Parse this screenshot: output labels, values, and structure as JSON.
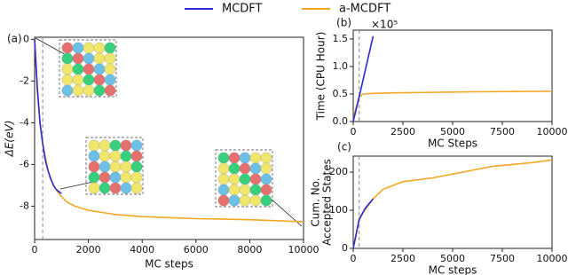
{
  "chart_data": [
    {
      "type": "line",
      "panel_label": "(a)",
      "xlabel": "MC steps",
      "ylabel": "ΔE(eV)",
      "xlim": [
        0,
        10000
      ],
      "ylim": [
        -9.6,
        0.1
      ],
      "xticks": [
        0,
        2000,
        4000,
        6000,
        8000,
        10000
      ],
      "yticks": [
        0,
        -2,
        -4,
        -6,
        -8
      ],
      "vlines": [
        300
      ],
      "series": [
        {
          "name": "a-MCDFT",
          "color": "#f5a623",
          "x": [
            0,
            100,
            200,
            300,
            500,
            700,
            900,
            1200,
            1500,
            2000,
            3000,
            4000,
            5000,
            6000,
            7000,
            8000,
            9000,
            10000
          ],
          "values": [
            0,
            -2.5,
            -4,
            -5,
            -6.3,
            -7,
            -7.4,
            -7.8,
            -8.0,
            -8.2,
            -8.4,
            -8.5,
            -8.55,
            -8.6,
            -8.62,
            -8.65,
            -8.7,
            -8.75
          ]
        },
        {
          "name": "MCDFT",
          "color": "#2a2ad0",
          "x": [
            0,
            100,
            200,
            300,
            400,
            500,
            600,
            700,
            800,
            900,
            1000
          ],
          "values": [
            0,
            -2.3,
            -4,
            -5,
            -5.8,
            -6.3,
            -6.7,
            -7,
            -7.2,
            -7.3,
            -7.4
          ]
        }
      ]
    },
    {
      "type": "line",
      "panel_label": "(b)",
      "xlabel": "MC Steps",
      "ylabel": "Time (CPU Hour)",
      "y_offset_label": "×10⁵",
      "xlim": [
        0,
        10000
      ],
      "ylim": [
        0,
        1.66
      ],
      "xticks": [
        0,
        2500,
        5000,
        7500,
        10000
      ],
      "yticks": [
        {
          "value": 0,
          "label": "0.0"
        },
        0.5,
        {
          "value": 1,
          "label": "1.0"
        },
        1.5
      ],
      "vlines": [
        300
      ],
      "series": [
        {
          "color": "#f5a623",
          "x": [
            0,
            100,
            300,
            500,
            1000,
            2000,
            4000,
            6000,
            8000,
            10000
          ],
          "values": [
            0,
            0.2,
            0.45,
            0.5,
            0.51,
            0.52,
            0.53,
            0.54,
            0.545,
            0.55
          ]
        },
        {
          "color": "#2a2ad0",
          "x": [
            0,
            300,
            1000
          ],
          "values": [
            0,
            0.45,
            1.55
          ]
        }
      ]
    },
    {
      "type": "line",
      "panel_label": "(c)",
      "xlabel": "MC steps",
      "ylabel": [
        "Cum. No.",
        "Accepted States"
      ],
      "xlim": [
        0,
        10000
      ],
      "ylim": [
        0,
        242
      ],
      "xticks": [
        0,
        2500,
        5000,
        7500,
        10000
      ],
      "yticks": [
        0,
        100,
        200
      ],
      "vlines": [
        300
      ],
      "series": [
        {
          "color": "#f5a623",
          "x": [
            0,
            300,
            1000,
            1500,
            2500,
            4000,
            5000,
            6000,
            7000,
            8000,
            9000,
            10000
          ],
          "values": [
            0,
            80,
            130,
            155,
            175,
            185,
            195,
            205,
            215,
            220,
            225,
            232
          ]
        },
        {
          "color": "#2a2ad0",
          "x": [
            0,
            300,
            600,
            1000
          ],
          "values": [
            0,
            75,
            105,
            130
          ]
        }
      ]
    }
  ]
}
